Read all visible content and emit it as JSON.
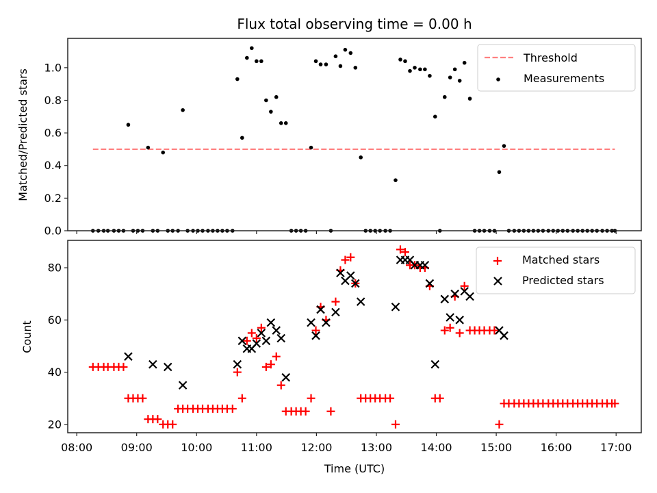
{
  "chart_data": [
    {
      "type": "scatter",
      "title": "Flux total observing time = 0.00 h",
      "xlabel": "",
      "ylabel": "Matched/Predicted stars",
      "ylim": [
        0,
        1.18
      ],
      "xlim": [
        7.85,
        17.42
      ],
      "yticks": [
        "0.0",
        "0.2",
        "0.4",
        "0.6",
        "0.8",
        "1.0"
      ],
      "ytick_values": [
        0,
        0.2,
        0.4,
        0.6,
        0.8,
        1.0
      ],
      "legend": {
        "position": "top-right",
        "entries": [
          "Threshold",
          "Measurements"
        ]
      },
      "threshold": {
        "name": "Threshold",
        "value": 0.5,
        "x_range": [
          8.27,
          16.98
        ],
        "color": "#ff8080"
      },
      "series": [
        {
          "name": "Measurements",
          "color": "#000000",
          "x": [
            8.27,
            8.36,
            8.45,
            8.52,
            8.62,
            8.7,
            8.78,
            8.86,
            8.94,
            9.02,
            9.1,
            9.19,
            9.27,
            9.35,
            9.44,
            9.52,
            9.6,
            9.69,
            9.77,
            9.85,
            9.94,
            10.02,
            10.1,
            10.19,
            10.27,
            10.35,
            10.43,
            10.51,
            10.6,
            10.68,
            10.76,
            10.84,
            10.92,
            11.0,
            11.08,
            11.16,
            11.24,
            11.33,
            11.41,
            11.49,
            11.58,
            11.66,
            11.74,
            11.82,
            11.91,
            11.99,
            12.07,
            12.16,
            12.24,
            12.32,
            12.4,
            12.48,
            12.57,
            12.65,
            12.74,
            12.82,
            12.9,
            12.98,
            13.06,
            13.15,
            13.23,
            13.32,
            13.4,
            13.48,
            13.56,
            13.64,
            13.73,
            13.81,
            13.89,
            13.98,
            14.06,
            14.14,
            14.23,
            14.31,
            14.39,
            14.47,
            14.56,
            14.64,
            14.72,
            14.8,
            14.89,
            14.97,
            15.05,
            15.13,
            15.21,
            15.3,
            15.38,
            15.46,
            15.54,
            15.62,
            15.7,
            15.78,
            15.87,
            15.95,
            16.03,
            16.11,
            16.19,
            16.28,
            16.36,
            16.44,
            16.52,
            16.6,
            16.68,
            16.77,
            16.85,
            16.93,
            16.98
          ],
          "y": [
            0,
            0,
            0,
            0,
            0,
            0,
            0,
            0.65,
            0,
            0,
            0,
            0.51,
            0,
            0,
            0.48,
            0,
            0,
            0,
            0.74,
            0,
            0,
            0,
            0,
            0,
            0,
            0,
            0,
            0,
            0,
            0.93,
            0.57,
            1.06,
            1.12,
            1.04,
            1.04,
            0.8,
            0.73,
            0.82,
            0.66,
            0.66,
            0,
            0,
            0,
            0,
            0.51,
            1.04,
            1.02,
            1.02,
            0,
            1.07,
            1.01,
            1.11,
            1.09,
            1.0,
            0.45,
            0,
            0,
            0,
            0,
            0,
            0,
            0.31,
            1.05,
            1.04,
            0.98,
            1.0,
            0.99,
            0.99,
            0.95,
            0.7,
            0,
            0.82,
            0.94,
            0.99,
            0.92,
            1.03,
            0.81,
            0,
            0,
            0,
            0,
            0,
            0.36,
            0.52,
            0,
            0,
            0,
            0,
            0,
            0,
            0,
            0,
            0,
            0,
            0,
            0,
            0,
            0,
            0,
            0,
            0,
            0,
            0,
            0,
            0,
            0,
            0
          ]
        }
      ]
    },
    {
      "type": "scatter",
      "title": "",
      "xlabel": "Time (UTC)",
      "ylabel": "Count",
      "ylim": [
        16.8,
        90.5
      ],
      "xlim": [
        7.85,
        17.42
      ],
      "xticks": [
        "08:00",
        "09:00",
        "10:00",
        "11:00",
        "12:00",
        "13:00",
        "14:00",
        "15:00",
        "16:00",
        "17:00"
      ],
      "xtick_values": [
        8,
        9,
        10,
        11,
        12,
        13,
        14,
        15,
        16,
        17
      ],
      "yticks": [
        "20",
        "40",
        "60",
        "80"
      ],
      "ytick_values": [
        20,
        40,
        60,
        80
      ],
      "legend": {
        "position": "top-right",
        "entries": [
          "Matched stars",
          "Predicted stars"
        ]
      },
      "series": [
        {
          "name": "Matched stars",
          "marker": "+",
          "color": "#ff0000",
          "x": [
            8.27,
            8.36,
            8.45,
            8.52,
            8.62,
            8.7,
            8.78,
            8.86,
            8.94,
            9.02,
            9.1,
            9.19,
            9.27,
            9.35,
            9.44,
            9.52,
            9.6,
            9.69,
            9.77,
            9.85,
            9.94,
            10.02,
            10.1,
            10.19,
            10.27,
            10.35,
            10.43,
            10.51,
            10.6,
            10.68,
            10.76,
            10.84,
            10.92,
            11.0,
            11.08,
            11.16,
            11.24,
            11.33,
            11.41,
            11.49,
            11.58,
            11.66,
            11.74,
            11.82,
            11.91,
            11.99,
            12.07,
            12.16,
            12.24,
            12.32,
            12.4,
            12.48,
            12.57,
            12.65,
            12.74,
            12.82,
            12.9,
            12.98,
            13.06,
            13.15,
            13.23,
            13.32,
            13.4,
            13.48,
            13.56,
            13.64,
            13.73,
            13.81,
            13.89,
            13.98,
            14.06,
            14.14,
            14.23,
            14.31,
            14.39,
            14.47,
            14.56,
            14.64,
            14.72,
            14.8,
            14.89,
            14.97,
            15.05,
            15.13,
            15.21,
            15.3,
            15.38,
            15.46,
            15.54,
            15.62,
            15.7,
            15.78,
            15.87,
            15.95,
            16.03,
            16.11,
            16.19,
            16.28,
            16.36,
            16.44,
            16.52,
            16.6,
            16.68,
            16.77,
            16.85,
            16.93,
            16.98
          ],
          "y": [
            42,
            42,
            42,
            42,
            42,
            42,
            42,
            30,
            30,
            30,
            30,
            22,
            22,
            22,
            20,
            20,
            20,
            26,
            26,
            26,
            26,
            26,
            26,
            26,
            26,
            26,
            26,
            26,
            26,
            40,
            30,
            52,
            55,
            53,
            57,
            42,
            43,
            46,
            35,
            25,
            25,
            25,
            25,
            25,
            30,
            56,
            65,
            60,
            25,
            67,
            79,
            83,
            84,
            74,
            30,
            30,
            30,
            30,
            30,
            30,
            30,
            20,
            87,
            86,
            81,
            81,
            80,
            80,
            73,
            30,
            30,
            56,
            57,
            69,
            55,
            73,
            56,
            56,
            56,
            56,
            56,
            56,
            20,
            28,
            28,
            28,
            28,
            28,
            28,
            28,
            28,
            28,
            28,
            28,
            28,
            28,
            28,
            28,
            28,
            28,
            28,
            28,
            28,
            28,
            28,
            28,
            28
          ]
        },
        {
          "name": "Predicted stars",
          "marker": "x",
          "color": "#000000",
          "x": [
            8.86,
            9.27,
            9.52,
            9.77,
            10.68,
            10.76,
            10.84,
            10.92,
            11.0,
            11.08,
            11.16,
            11.24,
            11.33,
            11.41,
            11.49,
            11.91,
            11.99,
            12.07,
            12.16,
            12.32,
            12.4,
            12.48,
            12.57,
            12.65,
            12.74,
            13.32,
            13.4,
            13.48,
            13.56,
            13.64,
            13.73,
            13.81,
            13.89,
            13.98,
            14.14,
            14.23,
            14.31,
            14.39,
            14.47,
            14.56,
            15.05,
            15.13
          ],
          "y": [
            46,
            43,
            42,
            35,
            43,
            52,
            49,
            49,
            51,
            55,
            52,
            59,
            56,
            53,
            38,
            59,
            54,
            64,
            59,
            63,
            78,
            75,
            77,
            74,
            67,
            65,
            83,
            83,
            83,
            81,
            81,
            81,
            74,
            43,
            68,
            61,
            70,
            60,
            71,
            69,
            56,
            54
          ]
        }
      ]
    }
  ]
}
